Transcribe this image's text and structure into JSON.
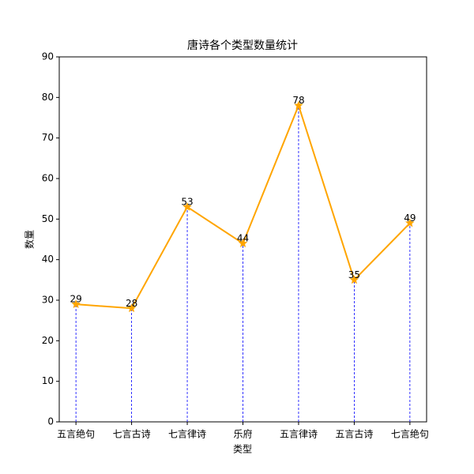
{
  "chart_data": {
    "type": "line",
    "title": "唐诗各个类型数量统计",
    "x_label": "类型",
    "y_label": "数量",
    "categories": [
      "五言绝句",
      "七言古诗",
      "七言律诗",
      "乐府",
      "五言律诗",
      "五言古诗",
      "七言绝句"
    ],
    "series": [
      {
        "name": "数量",
        "color": "#ffa500",
        "values": [
          29,
          28,
          53,
          44,
          78,
          35,
          49
        ]
      }
    ],
    "drop_line_color": "#0000ff",
    "ylim": [
      0,
      90
    ],
    "yticks": [
      0,
      10,
      20,
      30,
      40,
      50,
      60,
      70,
      80,
      90
    ]
  }
}
